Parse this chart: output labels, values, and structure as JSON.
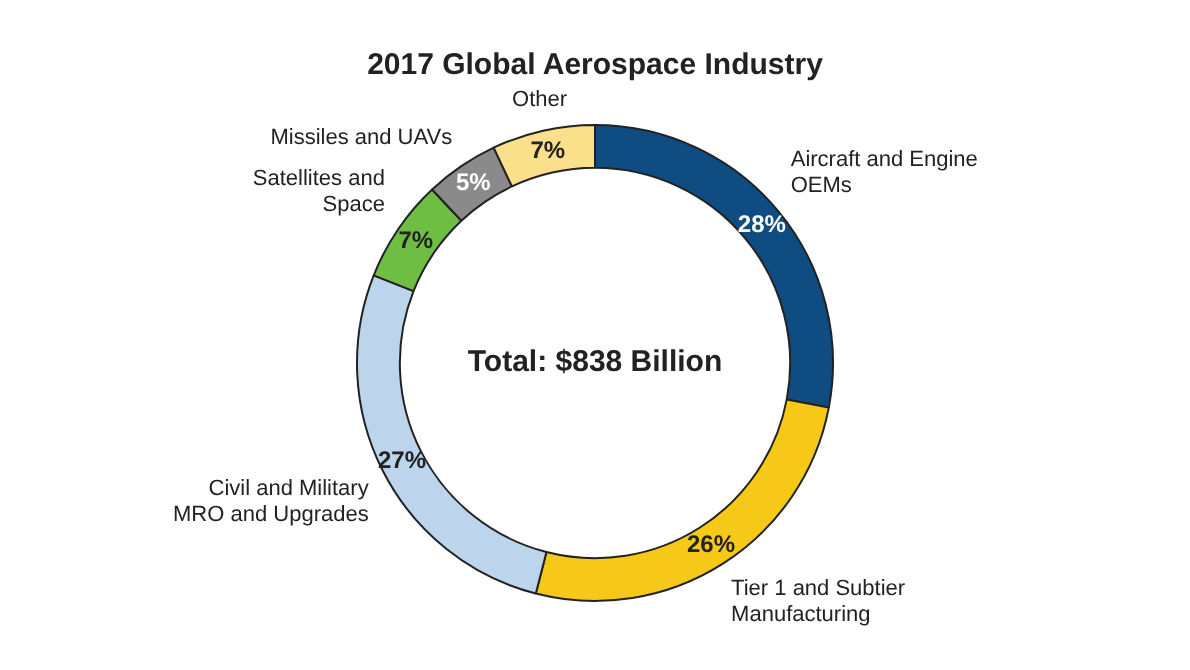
{
  "chart_data": {
    "type": "donut",
    "title": "2017 Global Aerospace Industry",
    "categories": [
      "Aircraft and Engine OEMs",
      "Tier 1 and Subtier Manufacturing",
      "Civil and Military MRO and Upgrades",
      "Satellites and Space",
      "Missiles and UAVs",
      "Other"
    ],
    "values": [
      28,
      26,
      27,
      7,
      5,
      7
    ],
    "colors": [
      "#0f4c81",
      "#f6c919",
      "#bcd5ec",
      "#6fbe44",
      "#8a8a8a",
      "#fbe08c"
    ],
    "value_labels": [
      "28%",
      "26%",
      "27%",
      "7%",
      "5%",
      "7%"
    ],
    "annotations": [
      "Total: $838 Billion"
    ],
    "legend": false
  }
}
